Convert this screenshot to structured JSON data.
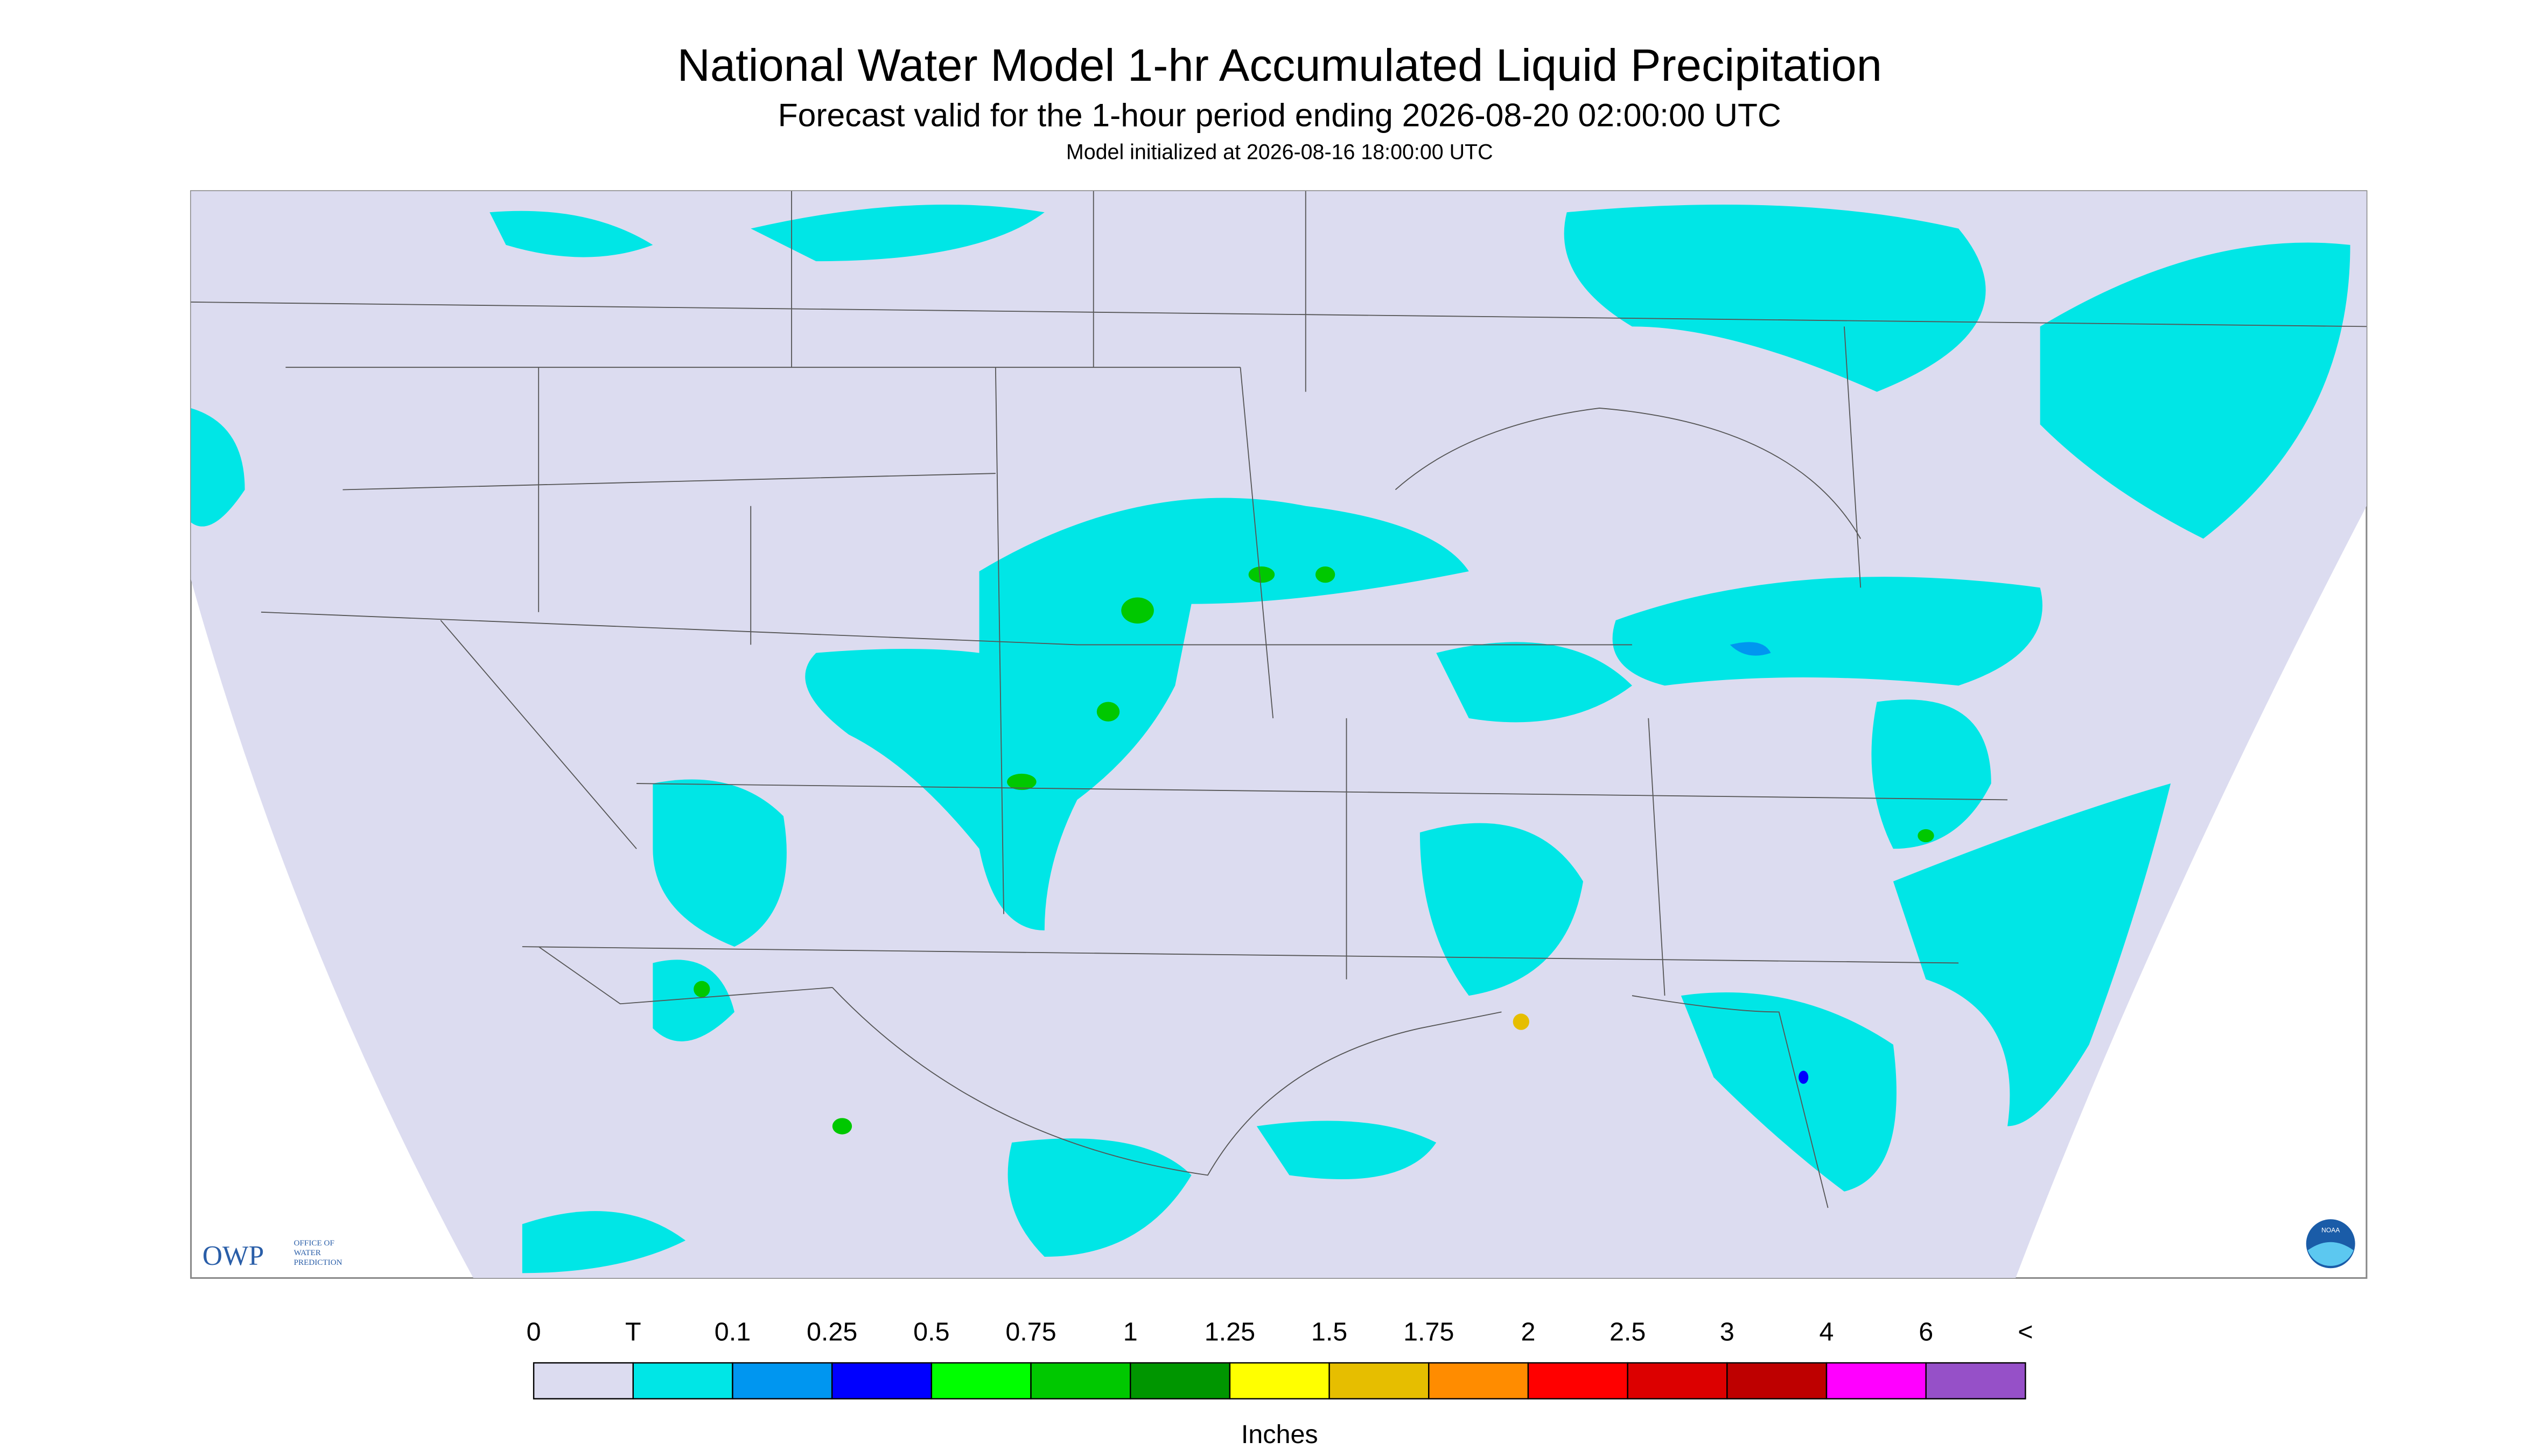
{
  "header": {
    "title": "National Water Model 1-hr Accumulated Liquid Precipitation",
    "subtitle": "Forecast valid for the 1-hour period ending 2026-08-20 02:00:00 UTC",
    "init": "Model initialized at 2026-08-16 18:00:00 UTC"
  },
  "legend": {
    "labels": [
      "0",
      "T",
      "0.1",
      "0.25",
      "0.5",
      "0.75",
      "1",
      "1.25",
      "1.5",
      "1.75",
      "2",
      "2.5",
      "3",
      "4",
      "6",
      "<"
    ],
    "colors": [
      "#dcdcf0",
      "#00e6e6",
      "#0096f0",
      "#0000ff",
      "#00ff00",
      "#00c800",
      "#009600",
      "#ffff00",
      "#e6be00",
      "#ff8c00",
      "#ff0000",
      "#dc0000",
      "#be0000",
      "#ff00ff",
      "#9650c8"
    ],
    "unit": "Inches"
  },
  "logos": {
    "owp": "OWP",
    "owp_name": [
      "OFFICE OF",
      "WATER",
      "PREDICTION"
    ],
    "noaa": "NOAA"
  }
}
